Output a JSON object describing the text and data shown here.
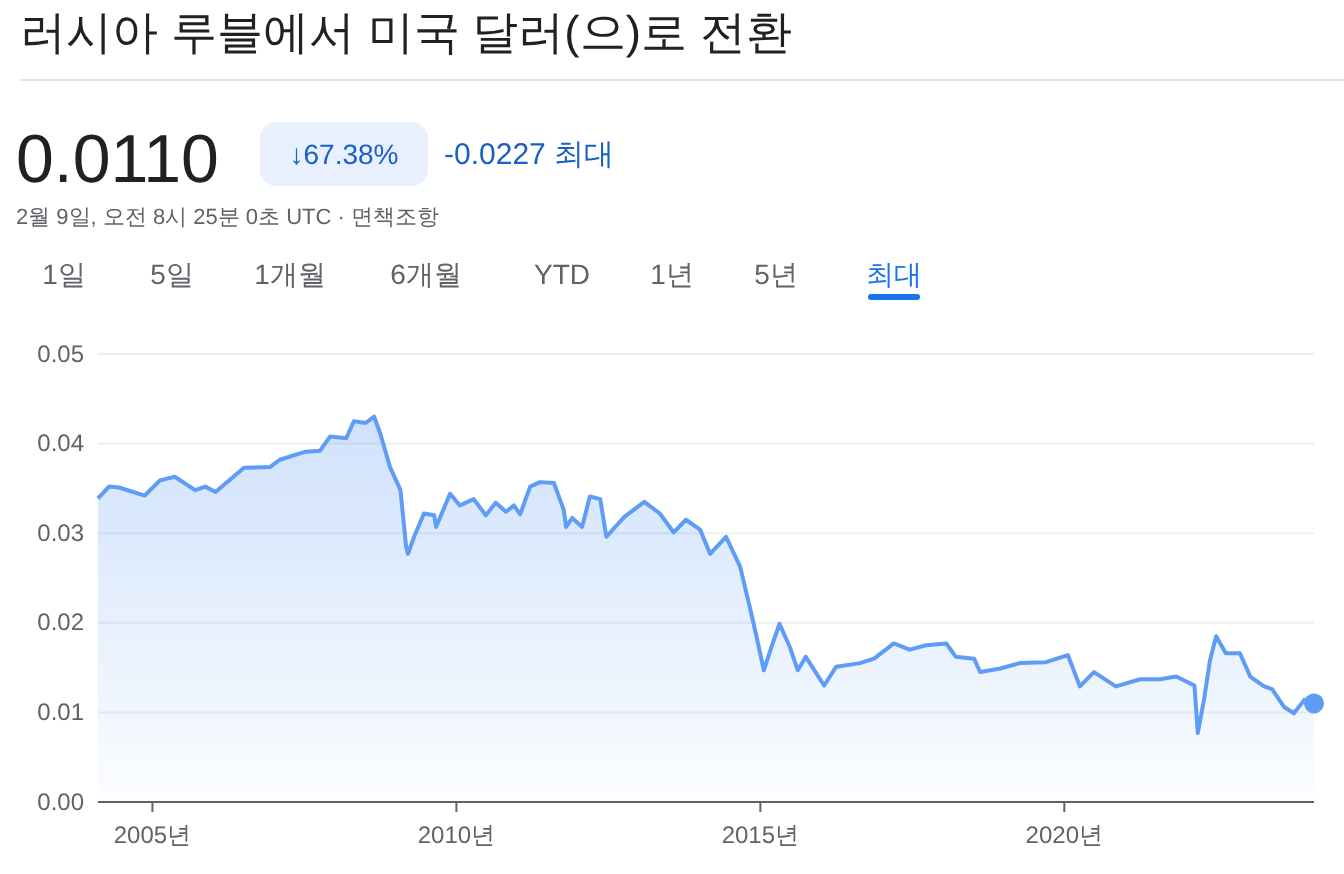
{
  "chart_data": {
    "type": "area",
    "title": "러시아 루블에서 미국 달러(으)로 전환",
    "annotations": [
      "0.0110",
      "↓67.38%",
      "-0.0227 최대",
      "2월 9일, 오전 8시 25분 0초 UTC · 면책조항",
      "1일",
      "5일",
      "1개월",
      "6개월",
      "YTD",
      "1년",
      "5년",
      "최대"
    ],
    "xlim": [
      "2004-02-09",
      "2024-02-09"
    ],
    "xticks": [
      {
        "value": "2005-01-01",
        "label": "2005년"
      },
      {
        "value": "2010-01-01",
        "label": "2010년"
      },
      {
        "value": "2015-01-01",
        "label": "2015년"
      },
      {
        "value": "2020-01-01",
        "label": "2020년"
      }
    ],
    "ylim": [
      0,
      0.05
    ],
    "yticks": [
      {
        "value": 0,
        "label": "0.00"
      },
      {
        "value": 0.01,
        "label": "0.01"
      },
      {
        "value": 0.02,
        "label": "0.02"
      },
      {
        "value": 0.03,
        "label": "0.03"
      },
      {
        "value": 0.04,
        "label": "0.04"
      },
      {
        "value": 0.05,
        "label": "0.05"
      }
    ],
    "grid": "y",
    "series": [
      {
        "color": "#5f9cf5",
        "x": [
          "2004-02-09",
          "2004-04-15",
          "2004-06-15",
          "2004-11-15",
          "2005-02-15",
          "2005-05-15",
          "2005-09-15",
          "2005-11-15",
          "2006-01-15",
          "2006-07-05",
          "2006-12-10",
          "2007-02-05",
          "2007-07-10",
          "2007-10-05",
          "2007-12-05",
          "2008-03-10",
          "2008-04-25",
          "2008-07-05",
          "2008-08-25",
          "2008-10-01",
          "2008-11-28",
          "2009-01-30",
          "2009-03-05",
          "2009-03-16",
          "2009-04-22",
          "2009-06-20",
          "2009-08-21",
          "2009-09-01",
          "2009-11-24",
          "2010-01-22",
          "2010-04-15",
          "2010-06-27",
          "2010-08-25",
          "2010-10-26",
          "2010-12-13",
          "2011-01-19",
          "2011-03-20",
          "2011-05-17",
          "2011-08-10",
          "2011-10-08",
          "2011-10-22",
          "2011-11-28",
          "2012-01-26",
          "2012-03-13",
          "2012-05-14",
          "2012-06-20",
          "2012-10-04",
          "2013-02-03",
          "2013-05-07",
          "2013-07-29",
          "2013-10-11",
          "2014-01-04",
          "2014-03-05",
          "2014-06-09",
          "2014-09-01",
          "2014-10-29",
          "2014-12-05",
          "2015-01-22",
          "2015-03-09",
          "2015-04-26",
          "2015-06-27",
          "2015-08-14",
          "2015-10-01",
          "2016-01-19",
          "2016-04-01",
          "2016-08-21",
          "2016-11-14",
          "2017-03-13",
          "2017-06-16",
          "2017-09-23",
          "2018-01-22",
          "2018-03-20",
          "2018-07-08",
          "2018-08-14",
          "2018-12-13",
          "2019-04-08",
          "2019-09-13",
          "2020-01-22",
          "2020-04-04",
          "2020-06-27",
          "2020-11-06",
          "2021-04-01",
          "2021-07-29",
          "2021-11-03",
          "2022-02-21",
          "2022-03-13",
          "2022-04-19",
          "2022-05-25",
          "2022-07-01",
          "2022-08-28",
          "2022-11-21",
          "2023-01-22",
          "2023-04-15",
          "2023-06-02",
          "2023-08-14",
          "2023-10-11",
          "2023-12-13",
          "2024-02-09"
        ],
        "values": [
          0.0339,
          0.0352,
          0.0351,
          0.0342,
          0.0359,
          0.0363,
          0.0348,
          0.0352,
          0.0346,
          0.0373,
          0.0374,
          0.0382,
          0.0391,
          0.0392,
          0.0408,
          0.0406,
          0.0425,
          0.0423,
          0.043,
          0.0411,
          0.0374,
          0.0348,
          0.0285,
          0.0277,
          0.0296,
          0.0322,
          0.032,
          0.0307,
          0.0344,
          0.0331,
          0.0338,
          0.032,
          0.0334,
          0.0324,
          0.0331,
          0.0321,
          0.0352,
          0.0357,
          0.0356,
          0.0326,
          0.0307,
          0.0317,
          0.0307,
          0.0341,
          0.0338,
          0.0296,
          0.0318,
          0.0335,
          0.0322,
          0.0301,
          0.0315,
          0.0304,
          0.0277,
          0.0296,
          0.0263,
          0.0218,
          0.0188,
          0.0147,
          0.0173,
          0.0199,
          0.0173,
          0.0147,
          0.0162,
          0.013,
          0.0151,
          0.0155,
          0.016,
          0.0177,
          0.017,
          0.0175,
          0.0177,
          0.0162,
          0.016,
          0.0145,
          0.0149,
          0.0155,
          0.0156,
          0.0164,
          0.0129,
          0.0145,
          0.0129,
          0.0137,
          0.0137,
          0.014,
          0.013,
          0.0077,
          0.0114,
          0.0158,
          0.0185,
          0.0166,
          0.0166,
          0.014,
          0.0129,
          0.0126,
          0.0106,
          0.0099,
          0.0114,
          0.011
        ]
      },
      {
        "type": "scatter",
        "color": "#5f9cf5",
        "x": [
          "2024-02-09"
        ],
        "values": [
          0.011
        ],
        "marker": "circle"
      }
    ]
  }
}
